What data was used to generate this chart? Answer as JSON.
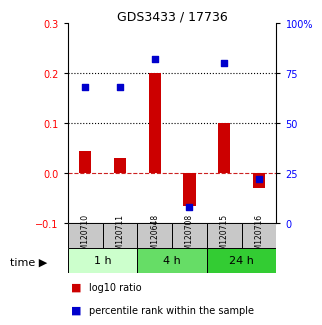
{
  "title": "GDS3433 / 17736",
  "samples": [
    "GSM120710",
    "GSM120711",
    "GSM120648",
    "GSM120708",
    "GSM120715",
    "GSM120716"
  ],
  "log10_ratio": [
    0.045,
    0.03,
    0.2,
    -0.065,
    0.1,
    -0.03
  ],
  "percentile_rank": [
    68,
    68,
    82,
    8,
    80,
    22
  ],
  "left_ylim": [
    -0.1,
    0.3
  ],
  "right_ylim": [
    0,
    100
  ],
  "left_yticks": [
    -0.1,
    0.0,
    0.1,
    0.2,
    0.3
  ],
  "right_yticks": [
    0,
    25,
    50,
    75,
    100
  ],
  "right_yticklabels": [
    "0",
    "25",
    "50",
    "75",
    "100%"
  ],
  "hlines_dotted": [
    0.1,
    0.2
  ],
  "hline_dashed_color": "#cc2222",
  "bar_color": "#cc0000",
  "dot_color": "#0000cc",
  "time_groups": [
    {
      "label": "1 h",
      "indices": [
        0,
        1
      ],
      "color": "#ccffcc"
    },
    {
      "label": "4 h",
      "indices": [
        2,
        3
      ],
      "color": "#66dd66"
    },
    {
      "label": "24 h",
      "indices": [
        4,
        5
      ],
      "color": "#33cc33"
    }
  ],
  "legend_bar_label": "log10 ratio",
  "legend_dot_label": "percentile rank within the sample",
  "bar_width": 0.35,
  "dot_size": 25,
  "sample_box_color": "#c8c8c8",
  "title_fontsize": 9,
  "tick_fontsize": 7,
  "sample_fontsize": 5.5,
  "time_fontsize": 8,
  "legend_fontsize": 7
}
